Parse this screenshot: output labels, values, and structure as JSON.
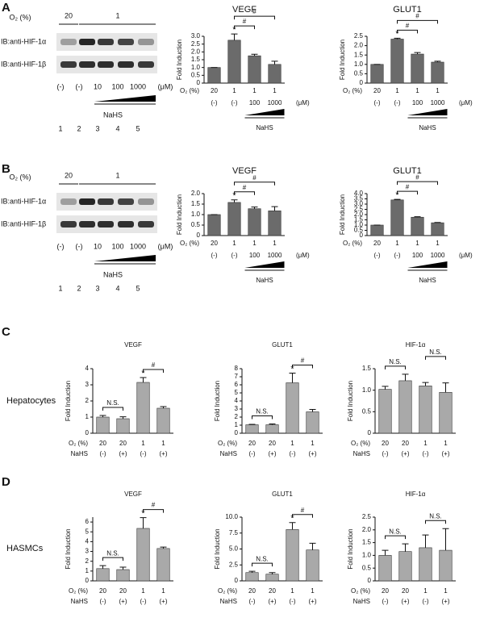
{
  "panels": [
    {
      "letter": "A",
      "blot": {
        "o2_label": "O₂ (%)",
        "o2_groups": [
          "20",
          "1"
        ],
        "rows": [
          "IB:anti-HIF-1α",
          "IB:anti-HIF-1β"
        ],
        "doses": [
          "(-)",
          "(-)",
          "10",
          "100",
          "1000"
        ],
        "unit": "(μM)",
        "treatment": "NaHS",
        "lanes": [
          "1",
          "2",
          "3",
          "4",
          "5"
        ]
      }
    },
    {
      "letter": "B",
      "blot": {
        "o2_label": "O₂ (%)",
        "o2_groups": [
          "20",
          "1"
        ],
        "rows": [
          "IB:anti-HIF-1α",
          "IB:anti-HIF-1β"
        ],
        "doses": [
          "(-)",
          "(-)",
          "10",
          "100",
          "1000"
        ],
        "unit": "(μM)",
        "treatment": "NaHS",
        "lanes": [
          "1",
          "2",
          "3",
          "4",
          "5"
        ]
      }
    },
    {
      "letter": "C",
      "row_label": "Hepatocytes"
    },
    {
      "letter": "D",
      "row_label": "HASMCs"
    }
  ],
  "chart_data": [
    {
      "type": "bar",
      "title": "VEGF",
      "ylabel": "Fold Induction",
      "x_row_label": "O₂ (%)",
      "categories": [
        "20",
        "1",
        "1",
        "1"
      ],
      "treatment": [
        "(-)",
        "(-)",
        "100",
        "1000"
      ],
      "treatment_unit": "(μM)",
      "treatment_label": "NaHS",
      "series": [
        {
          "color": "#6b6b6b",
          "values": [
            1,
            2.75,
            1.75,
            1.2
          ],
          "errors": [
            0,
            0.4,
            0.1,
            0.2
          ]
        }
      ],
      "ylim": [
        0,
        3
      ],
      "yticks": [
        0,
        0.5,
        {
          "value": 1,
          "label": "1.0"
        },
        1.5,
        {
          "value": 2,
          "label": "2.0"
        },
        2.5,
        {
          "value": 3,
          "label": "3.0"
        }
      ],
      "above": [
        null,
        "*",
        null,
        null
      ],
      "brackets": [
        {
          "label": "#",
          "between": [
            1,
            2
          ]
        },
        {
          "label": "#",
          "between": [
            1,
            3
          ]
        }
      ]
    },
    {
      "type": "bar",
      "title": "GLUT1",
      "ylabel": "Fold Induction",
      "x_row_label": "O₂ (%)",
      "categories": [
        "20",
        "1",
        "1",
        "1"
      ],
      "treatment": [
        "(-)",
        "(-)",
        "100",
        "1000"
      ],
      "treatment_unit": "(μM)",
      "treatment_label": "NaHS",
      "series": [
        {
          "color": "#6b6b6b",
          "values": [
            1,
            2.35,
            1.55,
            1.12
          ],
          "errors": [
            0,
            0.05,
            0.08,
            0.05
          ]
        }
      ],
      "ylim": [
        0,
        2.5
      ],
      "yticks": [
        0,
        0.5,
        {
          "value": 1,
          "label": "1.0"
        },
        1.5,
        {
          "value": 2,
          "label": "2.0"
        },
        2.5
      ],
      "above": [
        null,
        "*",
        null,
        null
      ],
      "brackets": [
        {
          "label": "#",
          "between": [
            1,
            2
          ]
        },
        {
          "label": "#",
          "between": [
            1,
            3
          ]
        }
      ]
    },
    {
      "type": "bar",
      "title": "VEGF",
      "ylabel": "Fold Induction",
      "x_row_label": "O₂ (%)",
      "categories": [
        "20",
        "1",
        "1",
        "1"
      ],
      "treatment": [
        "(-)",
        "(-)",
        "100",
        "1000"
      ],
      "treatment_unit": "(μM)",
      "treatment_label": "NaHS",
      "series": [
        {
          "color": "#6b6b6b",
          "values": [
            1,
            1.58,
            1.28,
            1.18
          ],
          "errors": [
            0,
            0.12,
            0.08,
            0.2
          ]
        }
      ],
      "ylim": [
        0,
        2
      ],
      "yticks": [
        0,
        0.5,
        {
          "value": 1,
          "label": "1.0"
        },
        1.5,
        {
          "value": 2,
          "label": "2.0"
        }
      ],
      "above": [
        null,
        "*",
        null,
        null
      ],
      "brackets": [
        {
          "label": "#",
          "between": [
            1,
            2
          ]
        },
        {
          "label": "#",
          "between": [
            1,
            3
          ]
        }
      ]
    },
    {
      "type": "bar",
      "title": "GLUT1",
      "ylabel": "Fold Induction",
      "x_row_label": "O₂ (%)",
      "categories": [
        "20",
        "1",
        "1",
        "1"
      ],
      "treatment": [
        "(-)",
        "(-)",
        "100",
        "1000"
      ],
      "treatment_unit": "(μM)",
      "treatment_label": "NaHS",
      "series": [
        {
          "color": "#6b6b6b",
          "values": [
            1,
            3.4,
            1.75,
            1.22
          ],
          "errors": [
            0,
            0.05,
            0.05,
            0.03
          ]
        }
      ],
      "ylim": [
        0,
        4
      ],
      "yticks": [
        0,
        0.5,
        {
          "value": 1,
          "label": "1.0"
        },
        1.5,
        {
          "value": 2,
          "label": "2.0"
        },
        2.5,
        {
          "value": 3,
          "label": "3.0"
        },
        3.5,
        {
          "value": 4,
          "label": "4.0"
        }
      ],
      "above": [
        null,
        "*",
        null,
        null
      ],
      "brackets": [
        {
          "label": "#",
          "between": [
            1,
            2
          ]
        },
        {
          "label": "#",
          "between": [
            1,
            3
          ]
        }
      ]
    },
    {
      "type": "bar",
      "title": "VEGF",
      "ylabel": "Fold Induction",
      "x_row_label": "O₂ (%)",
      "categories": [
        "20",
        "20",
        "1",
        "1"
      ],
      "treatment_row_label": "NaHS",
      "treatment": [
        "(-)",
        "(+)",
        "(-)",
        "(+)"
      ],
      "series": [
        {
          "color": "#a9a9a9",
          "values": [
            1.0,
            0.9,
            3.15,
            1.55
          ],
          "errors": [
            0.1,
            0.12,
            0.3,
            0.1
          ]
        }
      ],
      "ylim": [
        0,
        4
      ],
      "yticks": [
        0,
        1,
        2,
        3,
        4
      ],
      "above": [
        null,
        null,
        "*",
        null
      ],
      "brackets": [
        {
          "label": "N.S.",
          "between": [
            0,
            1
          ]
        },
        {
          "label": "#",
          "between": [
            2,
            3
          ]
        }
      ]
    },
    {
      "type": "bar",
      "title": "GLUT1",
      "ylabel": "Fold Induction",
      "x_row_label": "O₂ (%)",
      "categories": [
        "20",
        "20",
        "1",
        "1"
      ],
      "treatment_row_label": "NaHS",
      "treatment": [
        "(-)",
        "(+)",
        "(-)",
        "(+)"
      ],
      "series": [
        {
          "color": "#a9a9a9",
          "values": [
            1.05,
            1.05,
            6.25,
            2.65
          ],
          "errors": [
            0.05,
            0.1,
            1.2,
            0.3
          ]
        }
      ],
      "ylim": [
        0,
        8
      ],
      "yticks": [
        0,
        1,
        2,
        3,
        4,
        5,
        6,
        7,
        8
      ],
      "above": [
        null,
        null,
        "*",
        null
      ],
      "brackets": [
        {
          "label": "N.S.",
          "between": [
            0,
            1
          ]
        },
        {
          "label": "#",
          "between": [
            2,
            3
          ]
        }
      ]
    },
    {
      "type": "bar",
      "title": "HIF-1α",
      "ylabel": "Fold Induction",
      "x_row_label": "O₂ (%)",
      "categories": [
        "20",
        "20",
        "1",
        "1"
      ],
      "treatment_row_label": "NaHS",
      "treatment": [
        "(-)",
        "(+)",
        "(-)",
        "(+)"
      ],
      "series": [
        {
          "color": "#a9a9a9",
          "values": [
            1.02,
            1.22,
            1.1,
            0.95
          ],
          "errors": [
            0.07,
            0.15,
            0.08,
            0.22
          ]
        }
      ],
      "ylim": [
        0,
        1.5
      ],
      "yticks": [
        0,
        0.5,
        {
          "value": 1,
          "label": "1.0"
        },
        1.5
      ],
      "above": [
        null,
        null,
        null,
        null
      ],
      "brackets": [
        {
          "label": "N.S.",
          "between": [
            0,
            1
          ]
        },
        {
          "label": "N.S.",
          "between": [
            2,
            3
          ]
        }
      ]
    },
    {
      "type": "bar",
      "title": "VEGF",
      "ylabel": "Fold Induction",
      "x_row_label": "O₂ (%)",
      "categories": [
        "20",
        "20",
        "1",
        "1"
      ],
      "treatment_row_label": "NaHS",
      "treatment": [
        "(-)",
        "(+)",
        "(-)",
        "(+)"
      ],
      "series": [
        {
          "color": "#a9a9a9",
          "values": [
            1.25,
            1.15,
            5.35,
            3.3
          ],
          "errors": [
            0.3,
            0.25,
            1.1,
            0.15
          ]
        }
      ],
      "ylim": [
        0,
        6.5
      ],
      "yticks": [
        0,
        1,
        2,
        3,
        4,
        5,
        6
      ],
      "above": [
        null,
        null,
        "*",
        null
      ],
      "brackets": [
        {
          "label": "N.S.",
          "between": [
            0,
            1
          ]
        },
        {
          "label": "#",
          "between": [
            2,
            3
          ]
        }
      ]
    },
    {
      "type": "bar",
      "title": "GLUT1",
      "ylabel": "Fold Induction",
      "x_row_label": "O₂ (%)",
      "categories": [
        "20",
        "20",
        "1",
        "1"
      ],
      "treatment_row_label": "NaHS",
      "treatment": [
        "(-)",
        "(+)",
        "(-)",
        "(+)"
      ],
      "series": [
        {
          "color": "#a9a9a9",
          "values": [
            1.3,
            1.05,
            8.05,
            4.85
          ],
          "errors": [
            0.2,
            0.25,
            1.1,
            1.05
          ]
        }
      ],
      "ylim": [
        0,
        10
      ],
      "yticks": [
        0,
        2.5,
        {
          "value": 5,
          "label": "5.0"
        },
        7.5,
        {
          "value": 10,
          "label": "10.0"
        }
      ],
      "above": [
        null,
        null,
        "*",
        null
      ],
      "brackets": [
        {
          "label": "N.S.",
          "between": [
            0,
            1
          ]
        },
        {
          "label": "#",
          "between": [
            2,
            3
          ]
        }
      ]
    },
    {
      "type": "bar",
      "title": "HIF-1α",
      "ylabel": "Fold Induction",
      "x_row_label": "O₂ (%)",
      "categories": [
        "20",
        "20",
        "1",
        "1"
      ],
      "treatment_row_label": "NaHS",
      "treatment": [
        "(-)",
        "(+)",
        "(-)",
        "(+)"
      ],
      "series": [
        {
          "color": "#a9a9a9",
          "values": [
            1.0,
            1.15,
            1.3,
            1.2
          ],
          "errors": [
            0.2,
            0.3,
            0.5,
            0.85
          ]
        }
      ],
      "ylim": [
        0,
        2.5
      ],
      "yticks": [
        0,
        0.5,
        {
          "value": 1,
          "label": "1.0"
        },
        1.5,
        {
          "value": 2,
          "label": "2.0"
        },
        2.5
      ],
      "above": [
        null,
        null,
        null,
        null
      ],
      "brackets": [
        {
          "label": "N.S.",
          "between": [
            0,
            1
          ]
        },
        {
          "label": "N.S.",
          "between": [
            2,
            3
          ]
        }
      ]
    }
  ]
}
